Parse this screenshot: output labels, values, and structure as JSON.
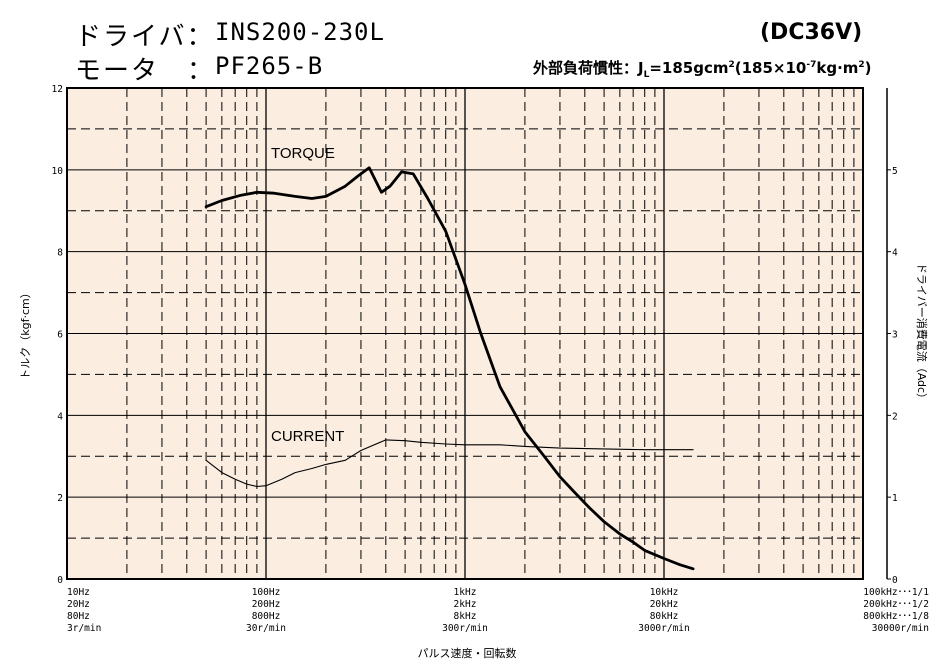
{
  "header": {
    "driver_label": "ドライバ：",
    "driver_value": "INS200-230L",
    "motor_label": "モータ　：",
    "motor_value": "PF265-B",
    "voltage": "(DC36V)",
    "inertia_prefix": "外部負荷慣性：J",
    "inertia_sub": "L",
    "inertia_mid": "=185gcm",
    "inertia_sup1": "2",
    "inertia_mid2": "(185×10",
    "inertia_sup2": "-7",
    "inertia_mid3": "kg·m",
    "inertia_sup3": "2",
    "inertia_end": ")"
  },
  "chart_data": {
    "type": "line",
    "xlabel": "パルス速度・回転数",
    "ylabel_left": "トルク（kgf·cm）",
    "ylabel_right": "ドライバー消費電流（Adc）",
    "x_scale": "log",
    "xlim": [
      10,
      100000
    ],
    "ylim_left": [
      0,
      12
    ],
    "ylim_right": [
      0,
      6
    ],
    "grid": true,
    "left_ticks": [
      "0",
      "2",
      "4",
      "6",
      "8",
      "10",
      "12"
    ],
    "right_ticks": [
      "0",
      "1",
      "2",
      "3",
      "4",
      "5"
    ],
    "x_tick_labels": [
      {
        "x": 10,
        "lines": [
          "10Hz",
          "20Hz",
          "80Hz",
          "3r/min"
        ]
      },
      {
        "x": 100,
        "lines": [
          "100Hz",
          "200Hz",
          "800Hz",
          "30r/min"
        ]
      },
      {
        "x": 1000,
        "lines": [
          "1kHz",
          "2kHz",
          "8kHz",
          "300r/min"
        ]
      },
      {
        "x": 10000,
        "lines": [
          "10kHz",
          "20kHz",
          "80kHz",
          "3000r/min"
        ]
      },
      {
        "x": 100000,
        "lines": [
          "100kHz･･･1/1",
          "200kHz･･･1/2",
          "800kHz･･･1/8",
          "30000r/min"
        ]
      }
    ],
    "series": [
      {
        "name": "TORQUE",
        "axis": "left",
        "x": [
          50,
          60,
          75,
          90,
          110,
          140,
          170,
          200,
          250,
          290,
          330,
          380,
          420,
          480,
          550,
          650,
          800,
          1000,
          1200,
          1500,
          2000,
          2500,
          3000,
          3500,
          4200,
          5000,
          6000,
          7000,
          8000,
          10000,
          12000,
          14000
        ],
        "values": [
          9.1,
          9.25,
          9.38,
          9.45,
          9.43,
          9.35,
          9.3,
          9.35,
          9.6,
          9.85,
          10.05,
          9.45,
          9.6,
          9.95,
          9.9,
          9.3,
          8.5,
          7.2,
          6.0,
          4.7,
          3.6,
          3.0,
          2.5,
          2.15,
          1.75,
          1.4,
          1.1,
          0.9,
          0.7,
          0.5,
          0.35,
          0.25
        ]
      },
      {
        "name": "CURRENT",
        "axis": "right",
        "x": [
          50,
          60,
          70,
          80,
          90,
          100,
          120,
          140,
          170,
          200,
          250,
          300,
          400,
          500,
          600,
          800,
          1000,
          1500,
          2000,
          3000,
          5000,
          8000,
          14000
        ],
        "values": [
          1.45,
          1.3,
          1.22,
          1.16,
          1.13,
          1.14,
          1.22,
          1.3,
          1.35,
          1.4,
          1.45,
          1.57,
          1.7,
          1.69,
          1.67,
          1.65,
          1.64,
          1.64,
          1.62,
          1.6,
          1.59,
          1.58,
          1.58
        ]
      }
    ]
  }
}
